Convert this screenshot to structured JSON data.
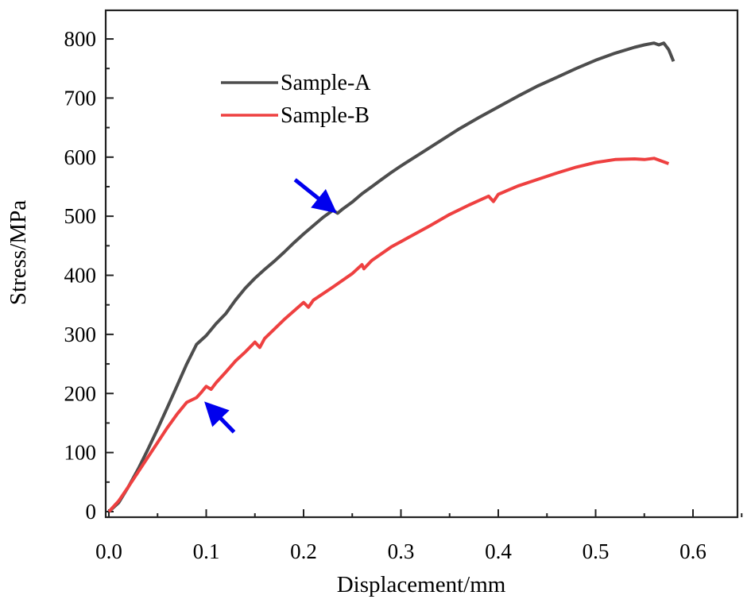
{
  "chart_data": {
    "type": "line",
    "xlabel": "Displacement/mm",
    "ylabel": "Stress/MPa",
    "xlim": [
      0.0,
      0.65
    ],
    "ylim": [
      0,
      820
    ],
    "xticks": [
      "0.0",
      "0.1",
      "0.2",
      "0.3",
      "0.4",
      "0.5",
      "0.6"
    ],
    "yticks": [
      "0",
      "100",
      "200",
      "300",
      "400",
      "500",
      "600",
      "700",
      "800"
    ],
    "legend_position": "top-left",
    "grid": false,
    "series": [
      {
        "name": "Sample-A",
        "color": "#4d4d4d",
        "x": [
          0.0,
          0.01,
          0.02,
          0.03,
          0.04,
          0.05,
          0.06,
          0.07,
          0.08,
          0.09,
          0.1,
          0.11,
          0.12,
          0.13,
          0.14,
          0.15,
          0.16,
          0.17,
          0.18,
          0.19,
          0.2,
          0.21,
          0.22,
          0.23,
          0.235,
          0.24,
          0.25,
          0.26,
          0.27,
          0.28,
          0.29,
          0.3,
          0.32,
          0.34,
          0.36,
          0.38,
          0.4,
          0.42,
          0.44,
          0.46,
          0.48,
          0.5,
          0.52,
          0.54,
          0.55,
          0.56,
          0.565,
          0.57,
          0.575,
          0.58
        ],
        "y": [
          0,
          15,
          42,
          72,
          105,
          140,
          176,
          213,
          250,
          283,
          298,
          318,
          335,
          358,
          378,
          395,
          410,
          424,
          439,
          455,
          470,
          484,
          498,
          510,
          505,
          512,
          524,
          538,
          550,
          562,
          574,
          585,
          606,
          627,
          648,
          667,
          685,
          703,
          720,
          735,
          750,
          764,
          776,
          786,
          790,
          793,
          790,
          793,
          782,
          762
        ]
      },
      {
        "name": "Sample-B",
        "color": "#ee4040",
        "x": [
          0.0,
          0.01,
          0.02,
          0.03,
          0.04,
          0.05,
          0.06,
          0.07,
          0.08,
          0.09,
          0.095,
          0.1,
          0.105,
          0.11,
          0.12,
          0.13,
          0.14,
          0.15,
          0.155,
          0.16,
          0.18,
          0.2,
          0.205,
          0.21,
          0.23,
          0.25,
          0.26,
          0.262,
          0.27,
          0.29,
          0.31,
          0.33,
          0.35,
          0.37,
          0.39,
          0.395,
          0.4,
          0.42,
          0.44,
          0.46,
          0.48,
          0.5,
          0.52,
          0.54,
          0.55,
          0.56,
          0.565,
          0.575
        ],
        "y": [
          0,
          18,
          42,
          67,
          92,
          117,
          142,
          165,
          185,
          193,
          202,
          212,
          207,
          218,
          236,
          255,
          270,
          287,
          278,
          293,
          325,
          354,
          346,
          358,
          380,
          403,
          418,
          411,
          425,
          448,
          466,
          484,
          503,
          519,
          534,
          525,
          537,
          551,
          562,
          573,
          583,
          591,
          596,
          597,
          596,
          598,
          595,
          589
        ]
      }
    ],
    "annotations": [
      {
        "type": "arrow",
        "color": "#0000ee",
        "target_series": "Sample-A",
        "x": 0.232,
        "y": 508
      },
      {
        "type": "arrow",
        "color": "#0000ee",
        "target_series": "Sample-B",
        "x": 0.1,
        "y": 183
      }
    ]
  }
}
